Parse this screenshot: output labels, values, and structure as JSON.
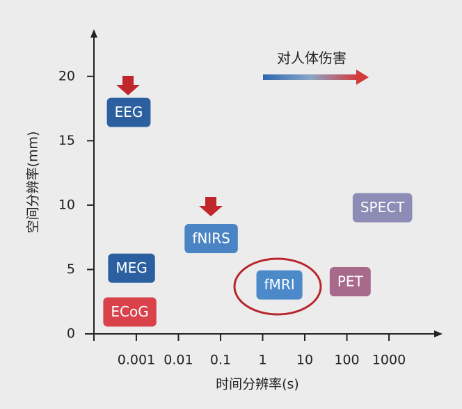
{
  "chart_data": {
    "type": "scatter",
    "x_label": "时间分辨率(s)",
    "y_label": "空间分辨率(mm)",
    "annotation": "对人体伤害",
    "log_x": true,
    "xlim": [
      6e-05,
      18000
    ],
    "ylim": [
      0,
      23.5
    ],
    "xticks": [
      0.001,
      0.01,
      0.1,
      1,
      10,
      100,
      1000
    ],
    "yticks": [
      0,
      5,
      10,
      15,
      20
    ],
    "points": [
      {
        "label": "EEG",
        "x": 0.00066,
        "y": 17.2,
        "color": "#2b5f9f"
      },
      {
        "label": "MEG",
        "x": 0.00077,
        "y": 5.1,
        "color": "#2b5f9f"
      },
      {
        "label": "ECoG",
        "x": 0.0007,
        "y": 1.7,
        "color": "#d9414b"
      },
      {
        "label": "fNIRS",
        "x": 0.06,
        "y": 7.4,
        "color": "#4a84c4"
      },
      {
        "label": "fMRI",
        "x": 2.5,
        "y": 3.8,
        "color": "#4b89c9"
      },
      {
        "label": "PET",
        "x": 120,
        "y": 4.05,
        "color": "#a86a8b"
      },
      {
        "label": "SPECT",
        "x": 700,
        "y": 9.8,
        "color": "#8c8cb6"
      }
    ]
  }
}
